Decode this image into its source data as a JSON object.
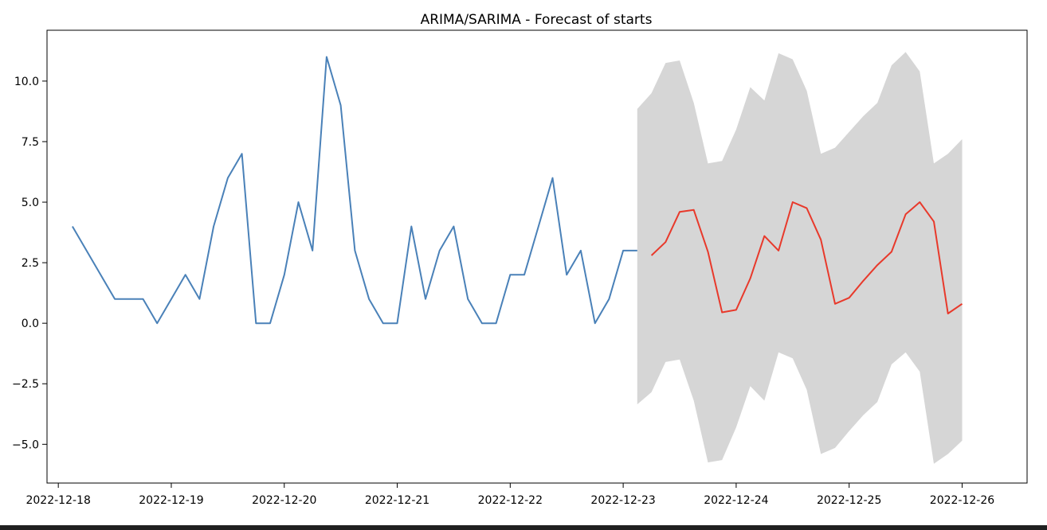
{
  "chart_data": {
    "type": "line",
    "title": "ARIMA/SARIMA - Forecast of starts",
    "xlabel": "",
    "ylabel": "",
    "x_ticks": [
      "2022-12-18",
      "2022-12-19",
      "2022-12-20",
      "2022-12-21",
      "2022-12-22",
      "2022-12-23",
      "2022-12-24",
      "2022-12-25",
      "2022-12-26"
    ],
    "y_ticks": [
      "−5.0",
      "−2.5",
      "0.0",
      "2.5",
      "5.0",
      "7.5",
      "10.0"
    ],
    "x_range_days": [
      "2022-12-17 21:36",
      "2022-12-26 13:48"
    ],
    "ylim": [
      -6.6,
      12.1
    ],
    "grid": false,
    "legend": "none",
    "colors": {
      "observed": "#4a81b8",
      "forecast": "#e8392b",
      "interval": "#d6d6d6"
    },
    "series": [
      {
        "x": [
          "2022-12-18 03:00",
          "2022-12-18 06:00",
          "2022-12-18 09:00",
          "2022-12-18 12:00",
          "2022-12-18 15:00",
          "2022-12-18 18:00",
          "2022-12-18 21:00",
          "2022-12-19 00:00",
          "2022-12-19 03:00",
          "2022-12-19 06:00",
          "2022-12-19 09:00",
          "2022-12-19 12:00",
          "2022-12-19 15:00",
          "2022-12-19 18:00",
          "2022-12-19 21:00",
          "2022-12-20 00:00",
          "2022-12-20 03:00",
          "2022-12-20 06:00",
          "2022-12-20 09:00",
          "2022-12-20 12:00",
          "2022-12-20 15:00",
          "2022-12-20 18:00",
          "2022-12-20 21:00",
          "2022-12-21 00:00",
          "2022-12-21 03:00",
          "2022-12-21 06:00",
          "2022-12-21 09:00",
          "2022-12-21 12:00",
          "2022-12-21 15:00",
          "2022-12-21 18:00",
          "2022-12-21 21:00",
          "2022-12-22 00:00",
          "2022-12-22 03:00",
          "2022-12-22 06:00",
          "2022-12-22 09:00",
          "2022-12-22 12:00",
          "2022-12-22 15:00",
          "2022-12-22 18:00",
          "2022-12-22 21:00",
          "2022-12-23 00:00",
          "2022-12-23 03:00"
        ],
        "values": [
          4,
          3,
          2,
          1,
          1,
          1,
          0,
          1,
          2,
          1,
          4,
          6,
          7,
          0,
          0,
          2,
          5,
          3,
          11,
          9,
          3,
          1,
          0,
          0,
          4,
          1,
          3,
          4,
          1,
          0,
          0,
          2,
          2,
          4,
          6,
          2,
          3,
          0,
          1,
          3,
          3
        ]
      },
      {
        "x": [
          "2022-12-23 06:00",
          "2022-12-23 09:00",
          "2022-12-23 12:00",
          "2022-12-23 15:00",
          "2022-12-23 18:00",
          "2022-12-23 21:00",
          "2022-12-24 00:00",
          "2022-12-24 03:00",
          "2022-12-24 06:00",
          "2022-12-24 09:00",
          "2022-12-24 12:00",
          "2022-12-24 15:00",
          "2022-12-24 18:00",
          "2022-12-24 21:00",
          "2022-12-25 00:00",
          "2022-12-25 03:00",
          "2022-12-25 06:00",
          "2022-12-25 09:00",
          "2022-12-25 12:00",
          "2022-12-25 15:00",
          "2022-12-25 18:00",
          "2022-12-25 21:00",
          "2022-12-26 00:00"
        ],
        "values": [
          2.8,
          3.35,
          4.6,
          4.68,
          2.95,
          0.45,
          0.55,
          1.85,
          3.6,
          3.0,
          5.0,
          4.75,
          3.45,
          0.8,
          1.05,
          1.75,
          2.4,
          2.95,
          4.5,
          5.0,
          4.2,
          0.4,
          0.8
        ]
      },
      {
        "x": [
          "2022-12-23 03:00",
          "2022-12-23 06:00",
          "2022-12-23 09:00",
          "2022-12-23 12:00",
          "2022-12-23 15:00",
          "2022-12-23 18:00",
          "2022-12-23 21:00",
          "2022-12-24 00:00",
          "2022-12-24 03:00",
          "2022-12-24 06:00",
          "2022-12-24 09:00",
          "2022-12-24 12:00",
          "2022-12-24 15:00",
          "2022-12-24 18:00",
          "2022-12-24 21:00",
          "2022-12-25 00:00",
          "2022-12-25 03:00",
          "2022-12-25 06:00",
          "2022-12-25 09:00",
          "2022-12-25 12:00",
          "2022-12-25 15:00",
          "2022-12-25 18:00",
          "2022-12-25 21:00",
          "2022-12-26 00:00"
        ],
        "upper": [
          8.85,
          9.5,
          10.75,
          10.85,
          9.1,
          6.6,
          6.7,
          8.0,
          9.75,
          9.2,
          11.15,
          10.9,
          9.6,
          7.0,
          7.25,
          7.9,
          8.55,
          9.1,
          10.65,
          11.2,
          10.4,
          6.6,
          7.0,
          7.6
        ],
        "lower": [
          -3.35,
          -2.85,
          -1.6,
          -1.5,
          -3.2,
          -5.75,
          -5.65,
          -4.3,
          -2.6,
          -3.2,
          -1.2,
          -1.45,
          -2.75,
          -5.4,
          -5.15,
          -4.45,
          -3.8,
          -3.25,
          -1.7,
          -1.2,
          -2.0,
          -5.8,
          -5.4,
          -4.85
        ]
      }
    ]
  }
}
